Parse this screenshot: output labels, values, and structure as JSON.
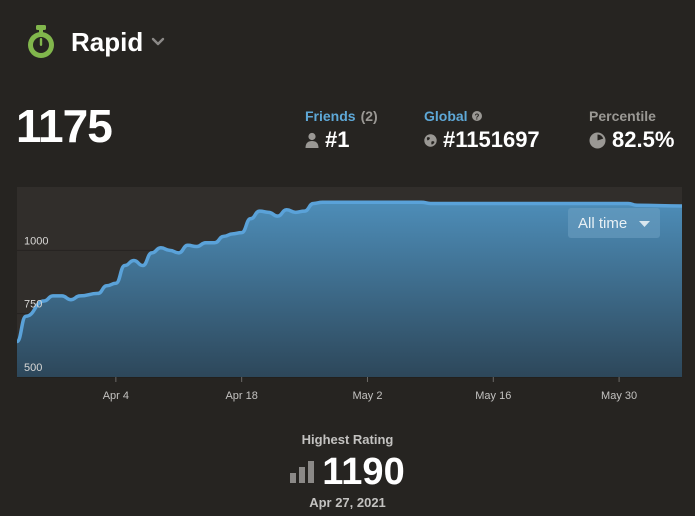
{
  "header": {
    "title": "Rapid"
  },
  "rating": "1175",
  "stats": {
    "friends": {
      "label": "Friends",
      "count": "(2)",
      "value": "#1"
    },
    "global": {
      "label": "Global",
      "value": "#1151697"
    },
    "percentile": {
      "label": "Percentile",
      "value": "82.5%"
    }
  },
  "range_selector": {
    "label": "All time"
  },
  "highest": {
    "label": "Highest Rating",
    "value": "1190",
    "date": "Apr 27, 2021"
  },
  "colors": {
    "accent": "#5ea8d7",
    "line": "#5aa2d9",
    "background": "#262421",
    "icon_green": "#81b64c"
  },
  "icons": {
    "header": "stopwatch-icon",
    "friends": "person-icon",
    "global": "globe-icon",
    "percentile": "pie-icon",
    "highest": "bar-chart-icon"
  },
  "chart_data": {
    "type": "area",
    "x_start": "2021-03-24",
    "x_end": "2021-06-06",
    "xticks": [
      {
        "label": "Apr 4",
        "date": "2021-04-04"
      },
      {
        "label": "Apr 18",
        "date": "2021-04-18"
      },
      {
        "label": "May 2",
        "date": "2021-05-02"
      },
      {
        "label": "May 16",
        "date": "2021-05-16"
      },
      {
        "label": "May 30",
        "date": "2021-05-30"
      }
    ],
    "yticks": [
      1000,
      750,
      500
    ],
    "ylim": [
      500,
      1250
    ],
    "grid": true,
    "points": [
      [
        "2021-03-24",
        640
      ],
      [
        "2021-03-25",
        740
      ],
      [
        "2021-03-27",
        800
      ],
      [
        "2021-03-28",
        820
      ],
      [
        "2021-03-29",
        820
      ],
      [
        "2021-03-30",
        805
      ],
      [
        "2021-03-31",
        820
      ],
      [
        "2021-04-02",
        830
      ],
      [
        "2021-04-03",
        860
      ],
      [
        "2021-04-04",
        870
      ],
      [
        "2021-04-05",
        940
      ],
      [
        "2021-04-06",
        960
      ],
      [
        "2021-04-07",
        940
      ],
      [
        "2021-04-08",
        990
      ],
      [
        "2021-04-09",
        1010
      ],
      [
        "2021-04-10",
        1000
      ],
      [
        "2021-04-11",
        990
      ],
      [
        "2021-04-12",
        1020
      ],
      [
        "2021-04-13",
        1015
      ],
      [
        "2021-04-14",
        1030
      ],
      [
        "2021-04-15",
        1030
      ],
      [
        "2021-04-16",
        1055
      ],
      [
        "2021-04-17",
        1065
      ],
      [
        "2021-04-18",
        1070
      ],
      [
        "2021-04-19",
        1125
      ],
      [
        "2021-04-20",
        1155
      ],
      [
        "2021-04-21",
        1150
      ],
      [
        "2021-04-22",
        1135
      ],
      [
        "2021-04-23",
        1160
      ],
      [
        "2021-04-24",
        1150
      ],
      [
        "2021-04-25",
        1155
      ],
      [
        "2021-04-26",
        1185
      ],
      [
        "2021-04-27",
        1190
      ],
      [
        "2021-05-05",
        1190
      ],
      [
        "2021-05-08",
        1190
      ],
      [
        "2021-05-09",
        1185
      ],
      [
        "2021-05-28",
        1185
      ],
      [
        "2021-05-31",
        1185
      ],
      [
        "2021-06-01",
        1178
      ],
      [
        "2021-06-06",
        1175
      ]
    ]
  }
}
